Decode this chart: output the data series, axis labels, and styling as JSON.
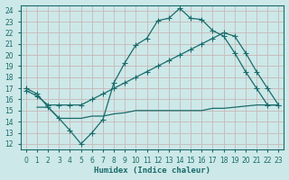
{
  "xlabel": "Humidex (Indice chaleur)",
  "background_color": "#cde8e8",
  "grid_color": "#c0d8d8",
  "line_color": "#1a6b6b",
  "xlim": [
    -0.5,
    23.5
  ],
  "ylim": [
    11.5,
    24.5
  ],
  "xticks": [
    0,
    1,
    2,
    3,
    4,
    5,
    6,
    7,
    8,
    9,
    10,
    11,
    12,
    13,
    14,
    15,
    16,
    17,
    18,
    19,
    20,
    21,
    22,
    23
  ],
  "yticks": [
    12,
    13,
    14,
    15,
    16,
    17,
    18,
    19,
    20,
    21,
    22,
    23,
    24
  ],
  "line1_x": [
    0,
    1,
    2,
    3,
    4,
    5,
    6,
    7,
    8,
    9,
    10,
    11,
    12,
    13,
    14,
    15,
    16,
    17,
    18,
    19,
    20,
    21,
    22,
    23
  ],
  "line1_y": [
    17.0,
    16.5,
    15.3,
    14.3,
    13.2,
    12.0,
    13.0,
    14.2,
    17.5,
    19.3,
    20.9,
    21.5,
    23.1,
    23.3,
    24.2,
    23.3,
    23.2,
    22.2,
    21.7,
    20.2,
    18.5,
    17.0,
    15.5,
    15.5
  ],
  "line2_x": [
    0,
    1,
    2,
    3,
    4,
    5,
    6,
    7,
    8,
    9,
    10,
    11,
    12,
    13,
    14,
    15,
    16,
    17,
    18,
    19,
    20,
    21,
    22,
    23
  ],
  "line2_y": [
    16.8,
    16.3,
    15.5,
    15.5,
    15.5,
    15.5,
    16.0,
    16.5,
    17.0,
    17.5,
    18.0,
    18.5,
    19.0,
    19.5,
    20.0,
    20.5,
    21.0,
    21.5,
    22.0,
    21.7,
    20.2,
    18.5,
    17.0,
    15.5
  ],
  "line3_x": [
    1,
    2,
    3,
    4,
    5,
    6,
    7,
    8,
    9,
    10,
    11,
    12,
    13,
    14,
    15,
    16,
    17,
    18,
    19,
    20,
    21,
    22,
    23
  ],
  "line3_y": [
    15.3,
    15.3,
    14.3,
    14.3,
    14.3,
    14.5,
    14.5,
    14.7,
    14.8,
    15.0,
    15.0,
    15.0,
    15.0,
    15.0,
    15.0,
    15.0,
    15.2,
    15.2,
    15.3,
    15.4,
    15.5,
    15.5,
    15.5
  ]
}
